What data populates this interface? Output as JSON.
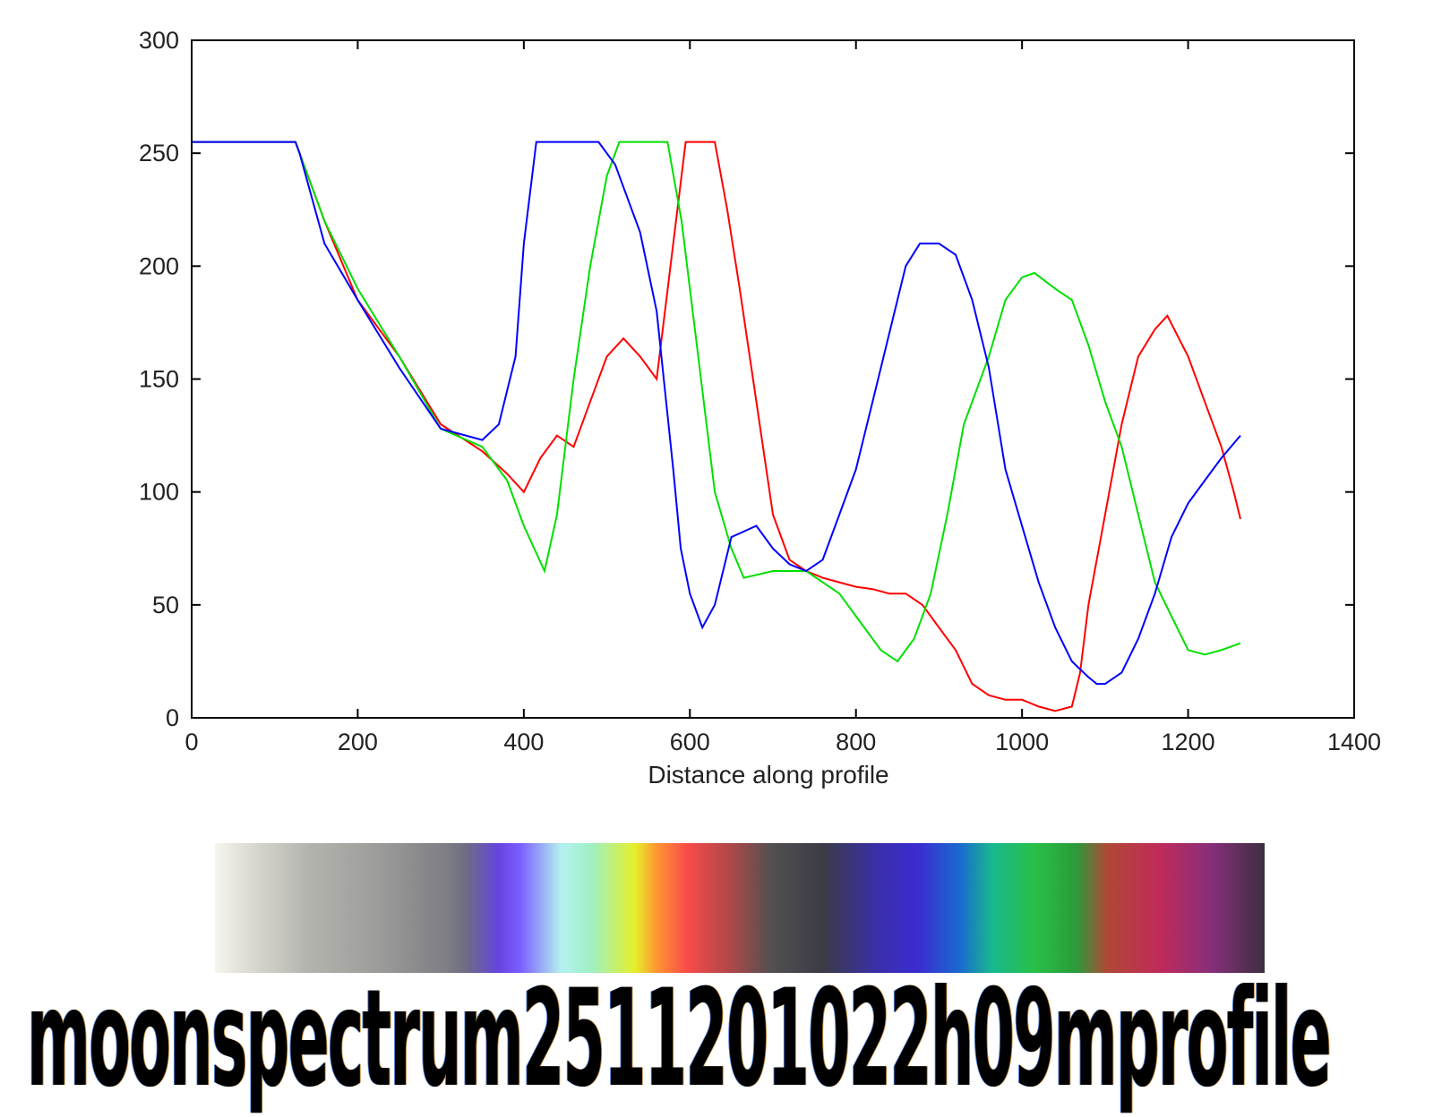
{
  "chart_data": {
    "type": "line",
    "title": "",
    "xlabel": "Distance along profile",
    "ylabel": "",
    "xlim": [
      0,
      1400
    ],
    "ylim": [
      0,
      300
    ],
    "xticks": [
      0,
      200,
      400,
      600,
      800,
      1000,
      1200,
      1400
    ],
    "yticks": [
      0,
      50,
      100,
      150,
      200,
      250,
      300
    ],
    "grid": false,
    "legend": "none",
    "series": [
      {
        "color": "#ff0000",
        "x": [
          0,
          125,
          130,
          160,
          200,
          250,
          300,
          350,
          380,
          400,
          420,
          440,
          460,
          480,
          500,
          520,
          540,
          560,
          580,
          595,
          630,
          645,
          660,
          680,
          700,
          720,
          740,
          760,
          780,
          800,
          820,
          840,
          860,
          880,
          900,
          920,
          940,
          960,
          980,
          1000,
          1020,
          1040,
          1060,
          1070,
          1080,
          1100,
          1120,
          1140,
          1160,
          1175,
          1200,
          1220,
          1240,
          1255,
          1263
        ],
        "y": [
          255,
          255,
          250,
          220,
          185,
          160,
          130,
          118,
          108,
          100,
          115,
          125,
          120,
          140,
          160,
          168,
          160,
          150,
          210,
          255,
          255,
          225,
          190,
          140,
          90,
          70,
          65,
          62,
          60,
          58,
          57,
          55,
          55,
          50,
          40,
          30,
          15,
          10,
          8,
          8,
          5,
          3,
          5,
          20,
          50,
          90,
          130,
          160,
          172,
          178,
          160,
          140,
          120,
          100,
          88
        ]
      },
      {
        "color": "#00e000",
        "x": [
          0,
          125,
          130,
          160,
          200,
          250,
          300,
          350,
          380,
          400,
          425,
          440,
          460,
          480,
          500,
          515,
          573,
          590,
          610,
          630,
          650,
          665,
          700,
          740,
          780,
          800,
          830,
          850,
          870,
          890,
          910,
          930,
          960,
          980,
          1000,
          1015,
          1040,
          1060,
          1080,
          1100,
          1120,
          1140,
          1160,
          1180,
          1200,
          1220,
          1240,
          1263
        ],
        "y": [
          255,
          255,
          250,
          220,
          190,
          160,
          128,
          120,
          105,
          85,
          65,
          90,
          150,
          200,
          240,
          255,
          255,
          220,
          160,
          100,
          75,
          62,
          65,
          65,
          55,
          45,
          30,
          25,
          35,
          55,
          90,
          130,
          160,
          185,
          195,
          197,
          190,
          185,
          165,
          140,
          120,
          90,
          60,
          45,
          30,
          28,
          30,
          33
        ]
      },
      {
        "color": "#0000ff",
        "x": [
          0,
          125,
          130,
          160,
          200,
          250,
          300,
          350,
          370,
          390,
          400,
          415,
          490,
          510,
          540,
          560,
          580,
          589,
          600,
          615,
          630,
          650,
          680,
          700,
          720,
          740,
          760,
          780,
          800,
          820,
          840,
          860,
          877,
          900,
          920,
          940,
          960,
          980,
          1000,
          1020,
          1040,
          1060,
          1080,
          1090,
          1100,
          1120,
          1140,
          1160,
          1180,
          1200,
          1220,
          1240,
          1263
        ],
        "y": [
          255,
          255,
          250,
          210,
          185,
          155,
          128,
          123,
          130,
          160,
          210,
          255,
          255,
          245,
          215,
          180,
          110,
          75,
          55,
          40,
          50,
          80,
          85,
          75,
          68,
          65,
          70,
          90,
          110,
          140,
          170,
          200,
          210,
          210,
          205,
          185,
          155,
          110,
          85,
          60,
          40,
          25,
          18,
          15,
          15,
          20,
          35,
          55,
          80,
          95,
          105,
          115,
          125
        ]
      }
    ]
  },
  "spectrum_image": {
    "description_visible": false
  },
  "caption": "moonspectrum2511201022h09mprofile"
}
